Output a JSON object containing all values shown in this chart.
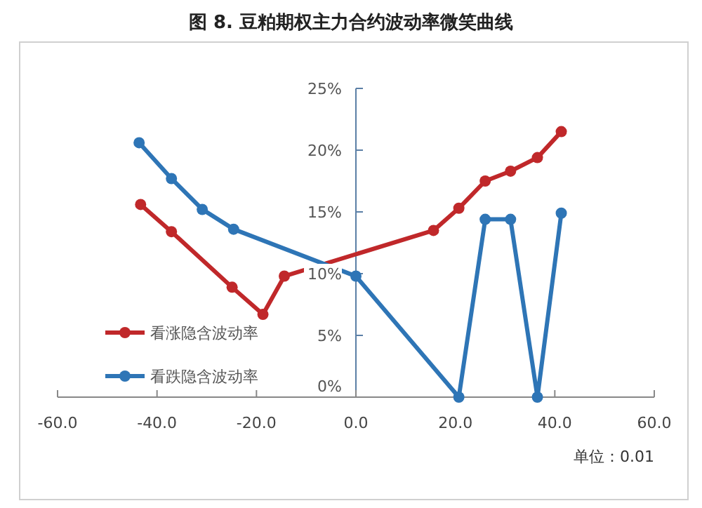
{
  "chart_data": {
    "type": "line",
    "title": "图 8.  豆粕期权主力合约波动率微笑曲线",
    "annotations": [
      "单位：0.01"
    ],
    "series": [
      {
        "name": "看涨隐含波动率",
        "color": "#c0282a",
        "x": [
          -43.3,
          -37.1,
          -24.9,
          -18.7,
          -14.4,
          15.6,
          20.7,
          26,
          31.1,
          36.5,
          41.3
        ],
        "values": [
          15.6,
          13.4,
          8.9,
          6.7,
          9.8,
          13.5,
          15.3,
          17.5,
          18.3,
          19.4,
          21.5
        ]
      },
      {
        "name": "看跌隐含波动率",
        "color": "#2e75b6",
        "x": [
          -43.6,
          -37.1,
          -30.9,
          -24.6,
          0,
          20.7,
          26,
          31.1,
          36.5,
          41.3
        ],
        "values": [
          20.6,
          17.7,
          15.2,
          13.6,
          9.8,
          0,
          14.4,
          14.4,
          0,
          14.9
        ]
      }
    ],
    "xlim": [
      -60,
      60
    ],
    "ylim": [
      0,
      25
    ],
    "xticks": [
      {
        "value": -60,
        "label": "-60.0"
      },
      {
        "value": -40,
        "label": "-40.0"
      },
      {
        "value": -20,
        "label": "-20.0"
      },
      {
        "value": 0,
        "label": "0.0"
      },
      {
        "value": 20,
        "label": "20.0"
      },
      {
        "value": 40,
        "label": "40.0"
      },
      {
        "value": 60,
        "label": "60.0"
      }
    ],
    "yticks": [
      {
        "value": 0,
        "label": "0%"
      },
      {
        "value": 5,
        "label": "5%"
      },
      {
        "value": 10,
        "label": "10%"
      },
      {
        "value": 15,
        "label": "15%"
      },
      {
        "value": 20,
        "label": "20%"
      },
      {
        "value": 25,
        "label": "25%"
      }
    ],
    "marker": "circle",
    "line_style": "solid",
    "legend": "left",
    "grid": false
  }
}
